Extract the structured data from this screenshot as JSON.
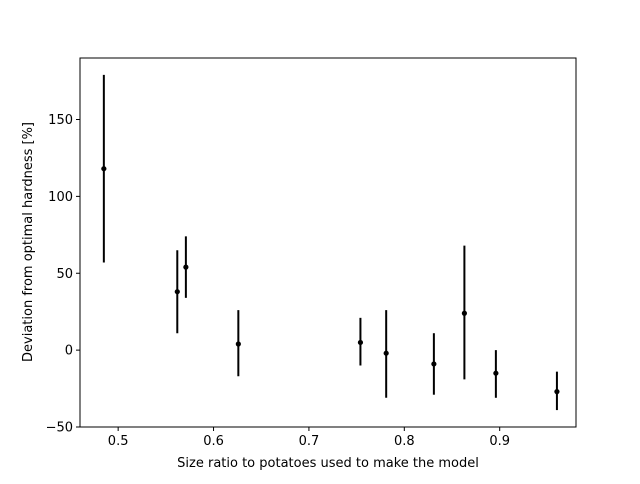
{
  "chart_data": {
    "type": "scatter",
    "title": "",
    "xlabel": "Size ratio to potatoes used to make the model",
    "ylabel": "Deviation from optimal hardness [%]",
    "xlim": [
      0.46,
      0.98
    ],
    "ylim": [
      -50,
      190
    ],
    "xticks": [
      0.5,
      0.6,
      0.7,
      0.8,
      0.9
    ],
    "yticks": [
      -50,
      0,
      50,
      100,
      150
    ],
    "xtick_labels": [
      "0.5",
      "0.6",
      "0.7",
      "0.8",
      "0.9"
    ],
    "ytick_labels": [
      "−50",
      "0",
      "50",
      "100",
      "150"
    ],
    "grid": false,
    "marker_color": "#000000",
    "points": [
      {
        "x": 0.485,
        "y": 118,
        "ylow": 57,
        "yhigh": 179
      },
      {
        "x": 0.562,
        "y": 38,
        "ylow": 11,
        "yhigh": 65
      },
      {
        "x": 0.571,
        "y": 54,
        "ylow": 34,
        "yhigh": 74
      },
      {
        "x": 0.626,
        "y": 4,
        "ylow": -17,
        "yhigh": 26
      },
      {
        "x": 0.754,
        "y": 5,
        "ylow": -10,
        "yhigh": 21
      },
      {
        "x": 0.781,
        "y": -2,
        "ylow": -31,
        "yhigh": 26
      },
      {
        "x": 0.831,
        "y": -9,
        "ylow": -29,
        "yhigh": 11
      },
      {
        "x": 0.863,
        "y": 24,
        "ylow": -19,
        "yhigh": 68
      },
      {
        "x": 0.896,
        "y": -15,
        "ylow": -31,
        "yhigh": 0
      },
      {
        "x": 0.96,
        "y": -27,
        "ylow": -39,
        "yhigh": -14
      }
    ]
  }
}
